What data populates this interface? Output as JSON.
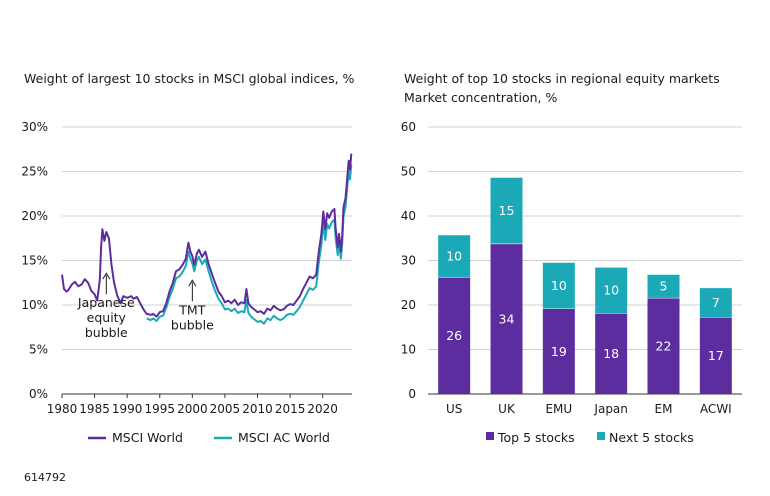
{
  "footer_id": "614792",
  "colors": {
    "msci_world": "#5b2d9e",
    "msci_ac_world": "#1ba9b8",
    "top5": "#5b2d9e",
    "next5": "#1ba9b8",
    "grid": "#d0d0d0",
    "axis": "#333333"
  },
  "chart_data": [
    {
      "type": "line",
      "title": "Weight of largest 10 stocks in MSCI global indices, %",
      "xlabel": "",
      "ylabel": "",
      "xlim": [
        1980,
        2024.5
      ],
      "ylim": [
        0,
        30
      ],
      "x_ticks": [
        "1980",
        "1985",
        "1990",
        "1995",
        "2000",
        "2005",
        "2010",
        "2015",
        "2020"
      ],
      "y_ticks": [
        "0%",
        "5%",
        "10%",
        "15%",
        "20%",
        "25%",
        "30%"
      ],
      "grid": "horizontal",
      "legend_position": "bottom",
      "series": [
        {
          "name": "MSCI World",
          "color_key": "msci_world",
          "points": [
            [
              1980,
              13.4
            ],
            [
              1980.3,
              11.8
            ],
            [
              1980.7,
              11.5
            ],
            [
              1981,
              11.7
            ],
            [
              1981.5,
              12.3
            ],
            [
              1982,
              12.6
            ],
            [
              1982.5,
              12.1
            ],
            [
              1983,
              12.3
            ],
            [
              1983.5,
              12.9
            ],
            [
              1984,
              12.5
            ],
            [
              1984.5,
              11.6
            ],
            [
              1985,
              11.2
            ],
            [
              1985.4,
              10.5
            ],
            [
              1985.8,
              12.8
            ],
            [
              1986,
              16.5
            ],
            [
              1986.2,
              18.5
            ],
            [
              1986.5,
              17.2
            ],
            [
              1986.8,
              18.2
            ],
            [
              1987.2,
              17.5
            ],
            [
              1987.6,
              14.5
            ],
            [
              1988,
              12.5
            ],
            [
              1988.5,
              11.0
            ],
            [
              1989,
              10.2
            ],
            [
              1989.4,
              11.0
            ],
            [
              1990,
              10.8
            ],
            [
              1990.6,
              11.0
            ],
            [
              1991,
              10.7
            ],
            [
              1991.5,
              10.9
            ],
            [
              1992,
              10.2
            ],
            [
              1992.5,
              9.5
            ],
            [
              1993,
              9.0
            ],
            [
              1993.6,
              8.9
            ],
            [
              1994,
              9.0
            ],
            [
              1994.5,
              8.7
            ],
            [
              1995,
              9.2
            ],
            [
              1995.5,
              9.3
            ],
            [
              1996,
              10.2
            ],
            [
              1996.5,
              11.5
            ],
            [
              1997,
              12.5
            ],
            [
              1997.5,
              13.8
            ],
            [
              1998,
              14.0
            ],
            [
              1998.5,
              14.5
            ],
            [
              1999,
              15.2
            ],
            [
              1999.4,
              17.0
            ],
            [
              1999.7,
              16.0
            ],
            [
              2000,
              15.5
            ],
            [
              2000.3,
              14.5
            ],
            [
              2000.7,
              15.8
            ],
            [
              2001,
              16.2
            ],
            [
              2001.5,
              15.4
            ],
            [
              2002,
              16.0
            ],
            [
              2002.5,
              14.6
            ],
            [
              2003,
              13.5
            ],
            [
              2003.5,
              12.5
            ],
            [
              2004,
              11.5
            ],
            [
              2004.5,
              11.0
            ],
            [
              2005,
              10.3
            ],
            [
              2005.5,
              10.5
            ],
            [
              2006,
              10.2
            ],
            [
              2006.5,
              10.6
            ],
            [
              2007,
              10.0
            ],
            [
              2007.5,
              10.3
            ],
            [
              2008,
              10.2
            ],
            [
              2008.3,
              11.8
            ],
            [
              2008.6,
              10.2
            ],
            [
              2009,
              9.8
            ],
            [
              2009.5,
              9.5
            ],
            [
              2010,
              9.2
            ],
            [
              2010.5,
              9.3
            ],
            [
              2011,
              9.0
            ],
            [
              2011.5,
              9.6
            ],
            [
              2012,
              9.4
            ],
            [
              2012.5,
              9.9
            ],
            [
              2013,
              9.6
            ],
            [
              2013.5,
              9.4
            ],
            [
              2014,
              9.5
            ],
            [
              2014.5,
              9.9
            ],
            [
              2015,
              10.1
            ],
            [
              2015.5,
              10.0
            ],
            [
              2016,
              10.5
            ],
            [
              2016.5,
              11.0
            ],
            [
              2017,
              11.8
            ],
            [
              2017.5,
              12.5
            ],
            [
              2018,
              13.2
            ],
            [
              2018.5,
              13.0
            ],
            [
              2019,
              13.4
            ],
            [
              2019.4,
              16.0
            ],
            [
              2019.8,
              18.0
            ],
            [
              2020.1,
              20.5
            ],
            [
              2020.4,
              18.5
            ],
            [
              2020.7,
              20.3
            ],
            [
              2021,
              19.8
            ],
            [
              2021.4,
              20.5
            ],
            [
              2021.8,
              20.8
            ],
            [
              2022,
              18.5
            ],
            [
              2022.3,
              16.5
            ],
            [
              2022.5,
              18.0
            ],
            [
              2022.8,
              16.0
            ],
            [
              2023,
              17.8
            ],
            [
              2023.2,
              21.0
            ],
            [
              2023.5,
              22.0
            ],
            [
              2023.8,
              24.5
            ],
            [
              2024,
              26.2
            ],
            [
              2024.2,
              25.2
            ],
            [
              2024.4,
              27.0
            ]
          ]
        },
        {
          "name": "MSCI AC World",
          "color_key": "msci_ac_world",
          "points": [
            [
              1993,
              8.5
            ],
            [
              1993.6,
              8.3
            ],
            [
              1994,
              8.5
            ],
            [
              1994.5,
              8.2
            ],
            [
              1995,
              8.7
            ],
            [
              1995.5,
              8.8
            ],
            [
              1996,
              9.7
            ],
            [
              1996.5,
              10.9
            ],
            [
              1997,
              11.8
            ],
            [
              1997.5,
              13.0
            ],
            [
              1998,
              13.2
            ],
            [
              1998.5,
              13.7
            ],
            [
              1999,
              14.4
            ],
            [
              1999.4,
              16.0
            ],
            [
              1999.7,
              15.2
            ],
            [
              2000,
              14.7
            ],
            [
              2000.3,
              13.8
            ],
            [
              2000.7,
              15.0
            ],
            [
              2001,
              15.4
            ],
            [
              2001.5,
              14.6
            ],
            [
              2002,
              15.1
            ],
            [
              2002.5,
              13.8
            ],
            [
              2003,
              12.6
            ],
            [
              2003.5,
              11.6
            ],
            [
              2004,
              10.7
            ],
            [
              2004.5,
              10.2
            ],
            [
              2005,
              9.5
            ],
            [
              2005.5,
              9.6
            ],
            [
              2006,
              9.3
            ],
            [
              2006.5,
              9.6
            ],
            [
              2007,
              9.1
            ],
            [
              2007.5,
              9.3
            ],
            [
              2008,
              9.2
            ],
            [
              2008.3,
              10.6
            ],
            [
              2008.6,
              9.1
            ],
            [
              2009,
              8.7
            ],
            [
              2009.5,
              8.4
            ],
            [
              2010,
              8.1
            ],
            [
              2010.5,
              8.2
            ],
            [
              2011,
              7.9
            ],
            [
              2011.5,
              8.5
            ],
            [
              2012,
              8.3
            ],
            [
              2012.5,
              8.8
            ],
            [
              2013,
              8.5
            ],
            [
              2013.5,
              8.3
            ],
            [
              2014,
              8.5
            ],
            [
              2014.5,
              8.9
            ],
            [
              2015,
              9.0
            ],
            [
              2015.5,
              8.9
            ],
            [
              2016,
              9.3
            ],
            [
              2016.5,
              9.8
            ],
            [
              2017,
              10.5
            ],
            [
              2017.5,
              11.2
            ],
            [
              2018,
              11.9
            ],
            [
              2018.5,
              11.7
            ],
            [
              2019,
              12.1
            ],
            [
              2019.4,
              14.8
            ],
            [
              2019.8,
              16.8
            ],
            [
              2020.1,
              19.2
            ],
            [
              2020.4,
              17.3
            ],
            [
              2020.7,
              19.1
            ],
            [
              2021,
              18.6
            ],
            [
              2021.4,
              19.3
            ],
            [
              2021.8,
              19.6
            ],
            [
              2022,
              17.5
            ],
            [
              2022.3,
              15.6
            ],
            [
              2022.5,
              17.0
            ],
            [
              2022.8,
              15.2
            ],
            [
              2023,
              16.9
            ],
            [
              2023.2,
              20.0
            ],
            [
              2023.5,
              21.0
            ],
            [
              2023.8,
              23.4
            ],
            [
              2024,
              25.0
            ],
            [
              2024.2,
              24.1
            ],
            [
              2024.4,
              25.8
            ]
          ]
        }
      ],
      "annotations": [
        {
          "lines": [
            "Japanese",
            "equity",
            "bubble"
          ],
          "x": 1986.8,
          "y": 13.8
        },
        {
          "lines": [
            "TMT",
            "bubble"
          ],
          "x": 2000.0,
          "y": 13.0
        }
      ]
    },
    {
      "type": "bar",
      "stacked": true,
      "title": [
        "Weight of top 10 stocks in regional equity markets",
        "Market concentration, %"
      ],
      "xlabel": "",
      "ylabel": "",
      "ylim": [
        0,
        60
      ],
      "y_ticks": [
        "0",
        "10",
        "20",
        "30",
        "40",
        "50",
        "60"
      ],
      "grid": "horizontal",
      "legend_position": "bottom",
      "categories": [
        "US",
        "UK",
        "EMU",
        "Japan",
        "EM",
        "ACWI"
      ],
      "series": [
        {
          "name": "Top 5 stocks",
          "color_key": "top5",
          "values": [
            26.3,
            33.8,
            19.2,
            18.2,
            21.6,
            17.3
          ],
          "labels": [
            "26",
            "34",
            "19",
            "18",
            "22",
            "17"
          ]
        },
        {
          "name": "Next 5 stocks",
          "color_key": "next5",
          "values": [
            9.5,
            14.9,
            10.4,
            10.3,
            5.3,
            6.6
          ],
          "labels": [
            "10",
            "15",
            "10",
            "10",
            "5",
            "7"
          ]
        }
      ]
    }
  ]
}
